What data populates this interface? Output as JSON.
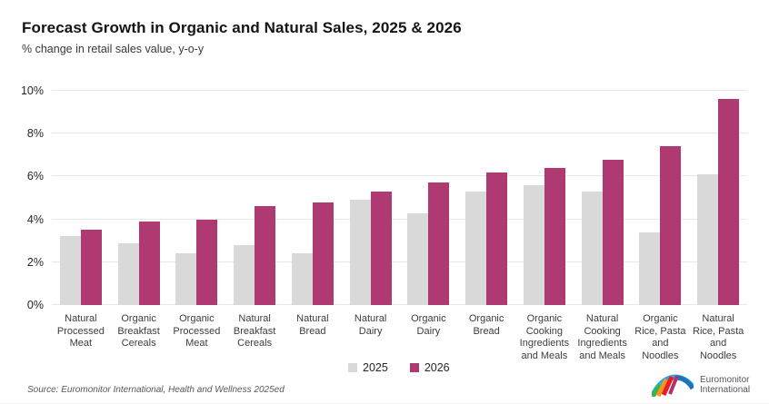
{
  "header": {
    "title": "Forecast Growth in Organic and Natural Sales, 2025 & 2026",
    "subtitle": "% change in retail sales value, y-o-y"
  },
  "chart_data": {
    "type": "bar",
    "title": "Forecast Growth in Organic and Natural Sales, 2025 & 2026",
    "subtitle": "% change in retail sales value, y-o-y",
    "ylabel": "% change in retail sales value, y-o-y",
    "ylim": [
      0,
      10
    ],
    "ytick_values": [
      0,
      2,
      4,
      6,
      8,
      10
    ],
    "yticks": [
      "0%",
      "2%",
      "4%",
      "6%",
      "8%",
      "10%"
    ],
    "grid": true,
    "legend_position": "bottom",
    "categories": [
      "Natural Processed Meat",
      "Organic Breakfast Cereals",
      "Organic Processed Meat",
      "Natural Breakfast Cereals",
      "Natural Bread",
      "Natural Dairy",
      "Organic Dairy",
      "Organic Bread",
      "Organic Cooking Ingredients and Meals",
      "Natural Cooking Ingredients and Meals",
      "Organic Rice, Pasta and Noodles",
      "Natural Rice, Pasta and Noodles"
    ],
    "category_display": [
      "Natural\nProcessed\nMeat",
      "Organic\nBreakfast\nCereals",
      "Organic\nProcessed\nMeat",
      "Natural\nBreakfast\nCereals",
      "Natural\nBread",
      "Natural\nDairy",
      "Organic\nDairy",
      "Organic\nBread",
      "Organic\nCooking\nIngredients\nand Meals",
      "Natural\nCooking\nIngredients\nand Meals",
      "Organic\nRice, Pasta\nand\nNoodles",
      "Natural\nRice, Pasta\nand\nNoodles"
    ],
    "series": [
      {
        "name": "2025",
        "color": "#d9d9d9",
        "values": [
          3.2,
          2.9,
          2.4,
          2.8,
          2.4,
          4.9,
          4.3,
          5.3,
          5.6,
          5.3,
          3.4,
          6.1
        ]
      },
      {
        "name": "2026",
        "color": "#af3a72",
        "values": [
          3.5,
          3.9,
          4.0,
          4.6,
          4.8,
          5.3,
          5.7,
          6.2,
          6.4,
          6.8,
          7.4,
          9.6
        ]
      }
    ]
  },
  "colors": {
    "series_2025": "#d9d9d9",
    "series_2026": "#af3a72",
    "gridline": "#e8e8e8"
  },
  "footer": {
    "source": "Source: Euromonitor International, Health and Wellness 2025ed",
    "logo": {
      "line1": "Euromonitor",
      "line2": "International"
    }
  }
}
